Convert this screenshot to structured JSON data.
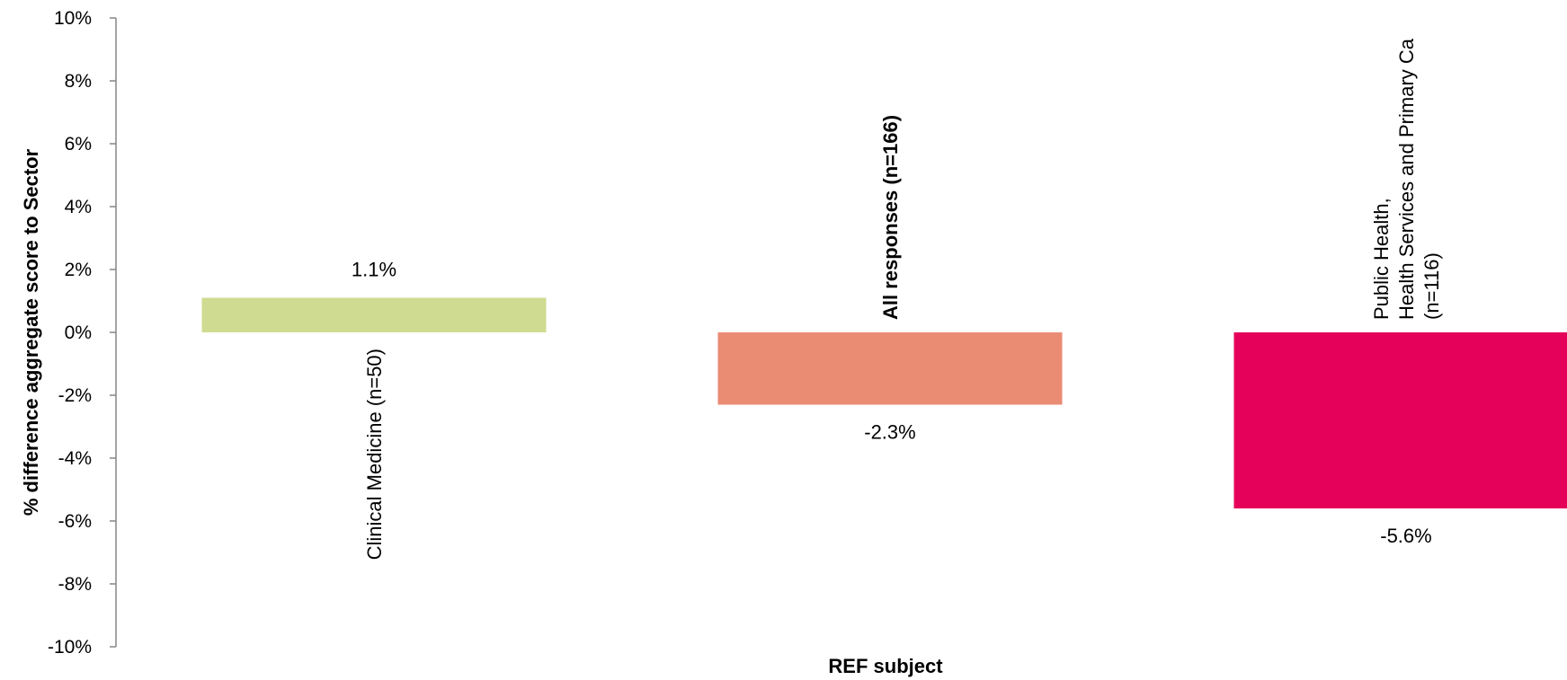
{
  "chart_data": {
    "type": "bar",
    "title": "",
    "xlabel": "REF subject",
    "ylabel": "% difference aggregate score to Sector",
    "ylim": [
      -10,
      10
    ],
    "y_ticks": [
      10,
      8,
      6,
      4,
      2,
      0,
      -2,
      -4,
      -6,
      -8,
      -10
    ],
    "y_tick_labels": [
      "10%",
      "8%",
      "6%",
      "4%",
      "2%",
      "0%",
      "-2%",
      "-4%",
      "-6%",
      "-8%",
      "-10%"
    ],
    "grid": false,
    "legend": "none",
    "categories": [
      {
        "lines": [
          "Clinical Medicine (n=50)"
        ],
        "bold": false
      },
      {
        "lines": [
          "All responses (n=166)"
        ],
        "bold": true
      },
      {
        "lines": [
          "Public Health,",
          "Health Services and Primary Ca",
          "(n=116)"
        ],
        "bold": false
      }
    ],
    "values": [
      1.1,
      -2.3,
      -5.6
    ],
    "value_labels": [
      "1.1%",
      "-2.3%",
      "-5.6%"
    ],
    "colors": [
      "#CFDB90",
      "#EA8B74",
      "#E5005A"
    ]
  }
}
